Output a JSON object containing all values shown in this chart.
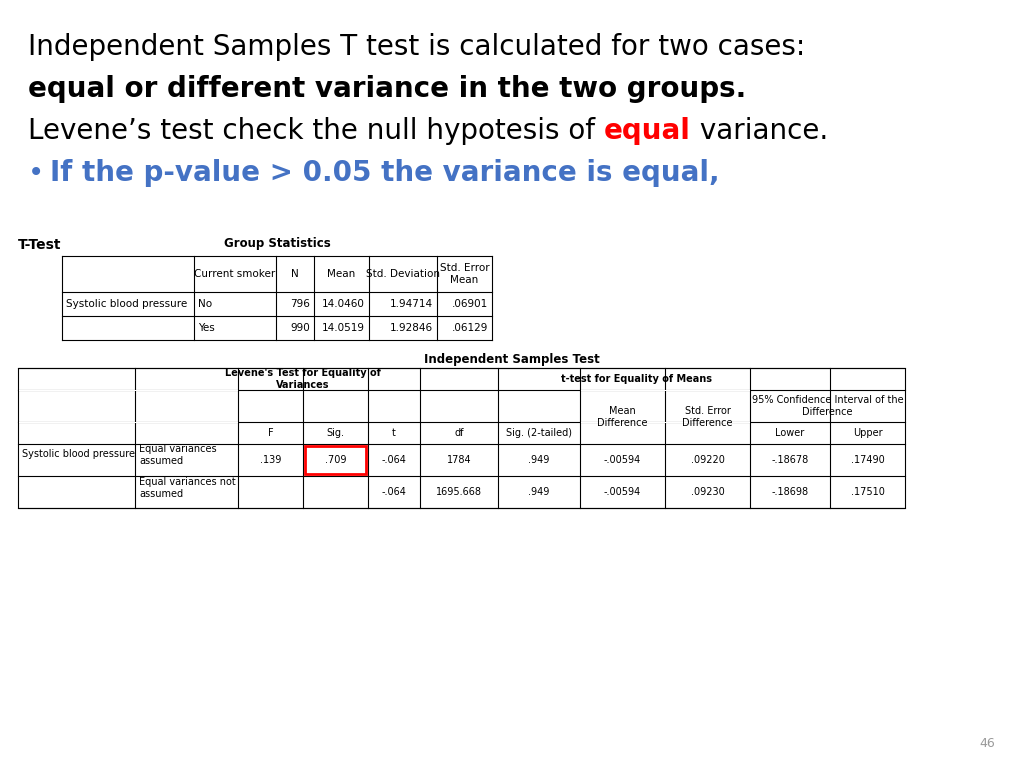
{
  "title_line1": "Independent Samples T test is calculated for two cases:",
  "title_line2_bold": "equal or different variance in the two groups.",
  "title_line3_pre": "Levene’s test check the null hypotesis of ",
  "title_line3_red": "equal",
  "title_line3_post": " variance.",
  "bullet_text": "If the p-value > 0.05 the variance is equal,",
  "bullet_color": "#4472C4",
  "red_color": "#FF0000",
  "ttest_label": "T-Test",
  "group_stats_title": "Group Statistics",
  "gs_row1": [
    "Systolic blood pressure",
    "No",
    "796",
    "14.0460",
    "1.94714",
    ".06901"
  ],
  "gs_row2": [
    "",
    "Yes",
    "990",
    "14.0519",
    "1.92846",
    ".06129"
  ],
  "ind_test_title": "Independent Samples Test",
  "it_row1_label1": "Systolic blood pressure",
  "it_row1_label2": "Equal variances\nassumed",
  "it_row1_data": [
    ".139",
    ".709",
    "-.064",
    "1784",
    ".949",
    "-.00594",
    ".09220",
    "-.18678",
    ".17490"
  ],
  "it_row2_label2": "Equal variances not\nassumed",
  "it_row2_data": [
    "",
    "",
    "-.064",
    "1695.668",
    ".949",
    "-.00594",
    ".09230",
    "-.18698",
    ".17510"
  ],
  "page_num": "46",
  "bg_color": "#FFFFFF",
  "text_color": "#000000",
  "highlight_box_color": "#FF0000"
}
